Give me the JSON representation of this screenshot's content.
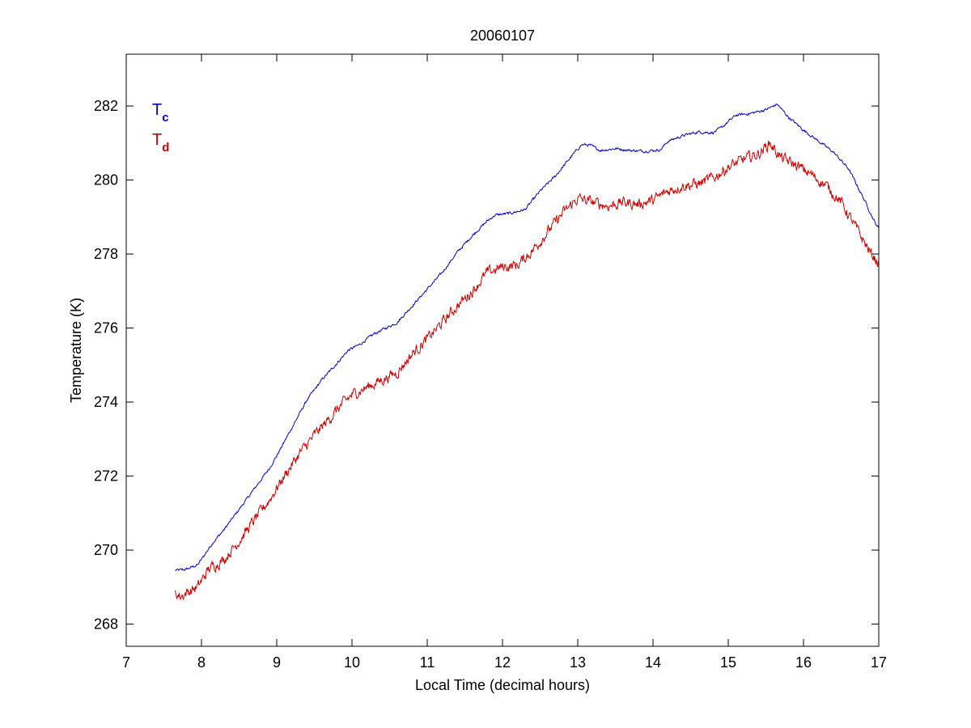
{
  "chart_data": {
    "type": "line",
    "title": "20060107",
    "xlabel": "Local Time (decimal hours)",
    "ylabel": "Temperature (K)",
    "xlim": [
      7,
      17
    ],
    "ylim": [
      267.4,
      283.4
    ],
    "xticks": [
      7,
      8,
      9,
      10,
      11,
      12,
      13,
      14,
      15,
      16,
      17
    ],
    "yticks": [
      268,
      270,
      272,
      274,
      276,
      278,
      280,
      282
    ],
    "grid": false,
    "legend": {
      "placement": "top-left",
      "entries": [
        {
          "base": "T",
          "sub": "c",
          "color": "#0000cc"
        },
        {
          "base": "T",
          "sub": "d",
          "color": "#cc0000"
        }
      ]
    },
    "series": [
      {
        "color": "#0000cc",
        "noise": 0.03,
        "points": [
          [
            7.65,
            269.45
          ],
          [
            7.8,
            269.48
          ],
          [
            7.95,
            269.6
          ],
          [
            8.0,
            269.75
          ],
          [
            8.15,
            270.2
          ],
          [
            8.3,
            270.55
          ],
          [
            8.5,
            271.1
          ],
          [
            8.7,
            271.65
          ],
          [
            8.9,
            272.2
          ],
          [
            9.0,
            272.55
          ],
          [
            9.2,
            273.3
          ],
          [
            9.4,
            274.05
          ],
          [
            9.6,
            274.6
          ],
          [
            9.8,
            275.05
          ],
          [
            9.95,
            275.4
          ],
          [
            10.1,
            275.55
          ],
          [
            10.3,
            275.85
          ],
          [
            10.5,
            276.05
          ],
          [
            10.6,
            276.15
          ],
          [
            10.8,
            276.6
          ],
          [
            11.0,
            277.05
          ],
          [
            11.2,
            277.5
          ],
          [
            11.4,
            278.05
          ],
          [
            11.6,
            278.5
          ],
          [
            11.8,
            278.9
          ],
          [
            11.9,
            279.05
          ],
          [
            12.1,
            279.1
          ],
          [
            12.3,
            279.2
          ],
          [
            12.5,
            279.7
          ],
          [
            12.7,
            280.1
          ],
          [
            12.9,
            280.6
          ],
          [
            13.05,
            280.95
          ],
          [
            13.15,
            280.95
          ],
          [
            13.3,
            280.8
          ],
          [
            13.5,
            280.85
          ],
          [
            13.7,
            280.8
          ],
          [
            13.9,
            280.78
          ],
          [
            14.1,
            280.82
          ],
          [
            14.2,
            281.05
          ],
          [
            14.4,
            281.2
          ],
          [
            14.6,
            281.3
          ],
          [
            14.8,
            281.28
          ],
          [
            14.9,
            281.4
          ],
          [
            15.1,
            281.75
          ],
          [
            15.3,
            281.8
          ],
          [
            15.5,
            281.9
          ],
          [
            15.65,
            282.05
          ],
          [
            15.8,
            281.7
          ],
          [
            16.0,
            281.35
          ],
          [
            16.2,
            281.05
          ],
          [
            16.4,
            280.75
          ],
          [
            16.6,
            280.3
          ],
          [
            16.8,
            279.5
          ],
          [
            16.95,
            278.85
          ],
          [
            17.0,
            278.7
          ]
        ]
      },
      {
        "color": "#cc0000",
        "noise": 0.12,
        "points": [
          [
            7.65,
            268.85
          ],
          [
            7.72,
            268.75
          ],
          [
            7.8,
            268.85
          ],
          [
            7.95,
            269.0
          ],
          [
            8.1,
            269.5
          ],
          [
            8.3,
            269.75
          ],
          [
            8.5,
            270.25
          ],
          [
            8.7,
            270.8
          ],
          [
            8.9,
            271.35
          ],
          [
            9.1,
            272.0
          ],
          [
            9.3,
            272.6
          ],
          [
            9.5,
            273.1
          ],
          [
            9.7,
            273.55
          ],
          [
            9.85,
            273.9
          ],
          [
            10.0,
            274.2
          ],
          [
            10.2,
            274.4
          ],
          [
            10.4,
            274.6
          ],
          [
            10.6,
            274.8
          ],
          [
            10.8,
            275.3
          ],
          [
            11.0,
            275.7
          ],
          [
            11.2,
            276.15
          ],
          [
            11.4,
            276.6
          ],
          [
            11.6,
            277.0
          ],
          [
            11.8,
            277.5
          ],
          [
            12.0,
            277.65
          ],
          [
            12.2,
            277.7
          ],
          [
            12.4,
            278.1
          ],
          [
            12.6,
            278.6
          ],
          [
            12.8,
            279.1
          ],
          [
            13.0,
            279.5
          ],
          [
            13.2,
            279.4
          ],
          [
            13.4,
            279.3
          ],
          [
            13.6,
            279.4
          ],
          [
            13.8,
            279.35
          ],
          [
            14.0,
            279.45
          ],
          [
            14.2,
            279.7
          ],
          [
            14.4,
            279.85
          ],
          [
            14.6,
            279.9
          ],
          [
            14.8,
            280.05
          ],
          [
            15.0,
            280.35
          ],
          [
            15.2,
            280.55
          ],
          [
            15.4,
            280.7
          ],
          [
            15.55,
            281.0
          ],
          [
            15.7,
            280.6
          ],
          [
            15.9,
            280.4
          ],
          [
            16.1,
            280.15
          ],
          [
            16.3,
            279.85
          ],
          [
            16.5,
            279.4
          ],
          [
            16.7,
            278.7
          ],
          [
            16.9,
            278.0
          ],
          [
            17.0,
            277.75
          ]
        ]
      }
    ]
  }
}
